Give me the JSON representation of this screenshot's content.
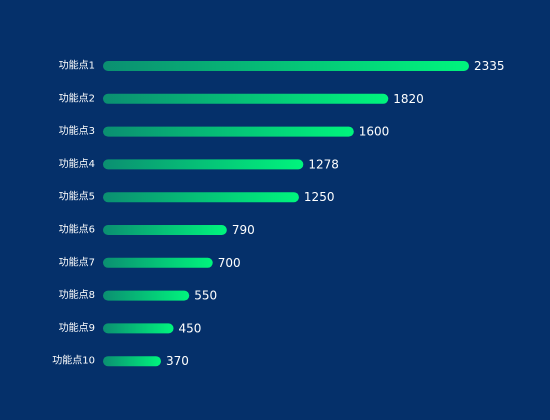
{
  "colors": {
    "background": "#05306a",
    "bar_start": "#0b8f71",
    "bar_end": "#00f57d",
    "text": "#ffffff"
  },
  "chart_data": {
    "type": "bar",
    "orientation": "horizontal",
    "categories": [
      "功能点1",
      "功能点2",
      "功能点3",
      "功能点4",
      "功能点5",
      "功能点6",
      "功能点7",
      "功能点8",
      "功能点9",
      "功能点10"
    ],
    "values": [
      2335,
      1820,
      1600,
      1278,
      1250,
      790,
      700,
      550,
      450,
      370
    ],
    "xlim": [
      0,
      2335
    ],
    "grid": false,
    "legend": "none",
    "title": "",
    "xlabel": "",
    "ylabel": ""
  }
}
